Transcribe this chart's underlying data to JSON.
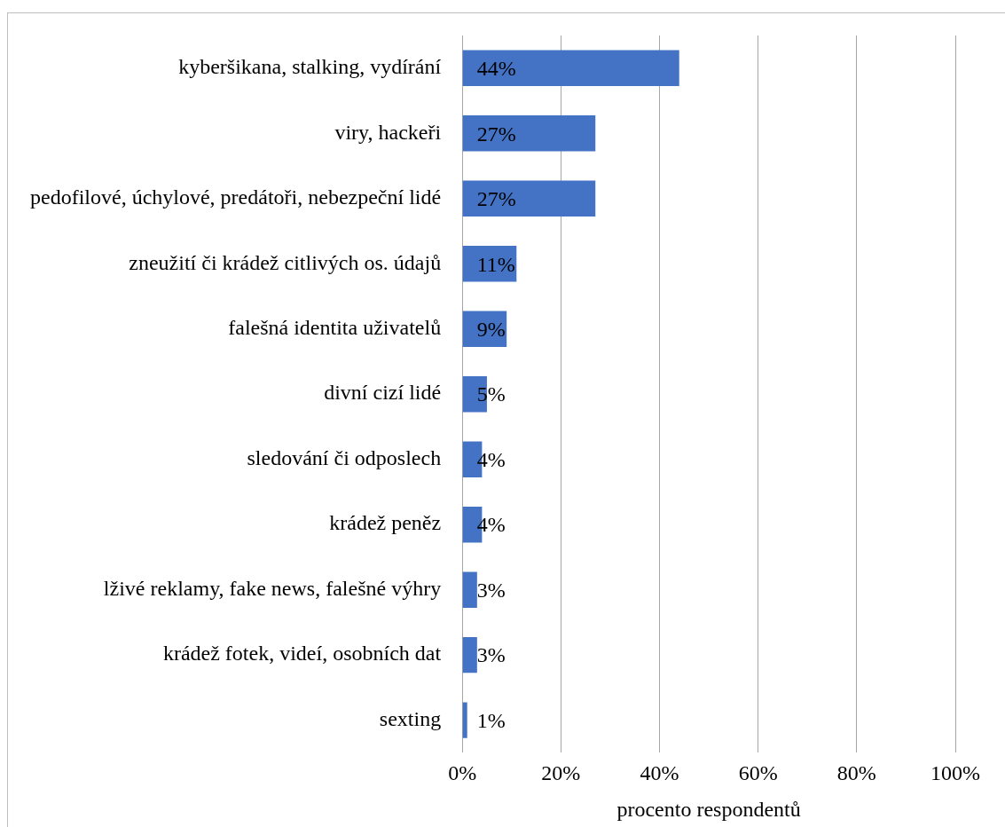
{
  "chart_data": {
    "type": "bar",
    "orientation": "horizontal",
    "xlabel": "procento respondentů",
    "categories": [
      "kyberšikana, stalking, vydírání",
      "viry, hackeři",
      "pedofilové, úchylové, predátoři, nebezpeční lidé",
      "zneužití či krádež citlivých os. údajů",
      "falešná identita uživatelů",
      "divní cizí lidé",
      "sledování či odposlech",
      "krádež peněz",
      "lživé reklamy, fake news, falešné výhry",
      "krádež fotek, videí, osobních dat",
      "sexting"
    ],
    "values": [
      44,
      27,
      27,
      11,
      9,
      5,
      4,
      4,
      3,
      3,
      1
    ],
    "value_labels": [
      "44%",
      "27%",
      "27%",
      "11%",
      "9%",
      "5%",
      "4%",
      "4%",
      "3%",
      "3%",
      "1%"
    ],
    "color": "#4472c4",
    "xlim": [
      0,
      100
    ],
    "xticks": [
      {
        "value": 0,
        "label": "0%"
      },
      {
        "value": 20,
        "label": "20%"
      },
      {
        "value": 40,
        "label": "40%"
      },
      {
        "value": 60,
        "label": "60%"
      },
      {
        "value": 80,
        "label": "80%"
      },
      {
        "value": 100,
        "label": "100%"
      }
    ],
    "grid": "x",
    "legend": false
  }
}
